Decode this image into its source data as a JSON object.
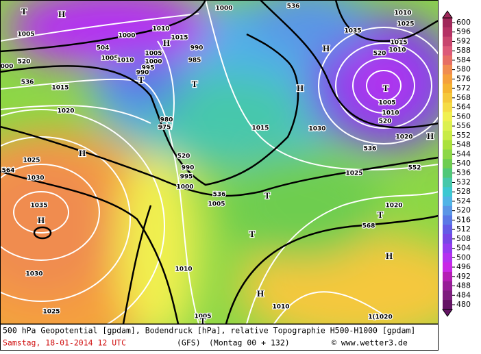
{
  "caption": {
    "line1": "500 hPa Geopotential [gpdam], Bodendruck [hPa], relative Topographie H500-H1000 [gpdam]",
    "date": "Samstag, 18-01-2014  12 UTC",
    "model": "(GFS)",
    "forecast": "(Montag 00 + 132)",
    "credit": "© www.wetter3.de"
  },
  "legend": {
    "levels": [
      600,
      596,
      592,
      588,
      584,
      580,
      576,
      572,
      568,
      564,
      560,
      556,
      552,
      548,
      544,
      540,
      536,
      532,
      528,
      524,
      520,
      516,
      512,
      508,
      504,
      500,
      496,
      492,
      488,
      484,
      480
    ],
    "colors": [
      "#a0285a",
      "#b43264",
      "#c8466e",
      "#dc5a78",
      "#e66e64",
      "#f08c50",
      "#f5a03c",
      "#f5b432",
      "#f5c83c",
      "#f5dc46",
      "#f0f050",
      "#dcf050",
      "#c8eb46",
      "#aae13c",
      "#8cd746",
      "#6ecd50",
      "#50c878",
      "#46c8aa",
      "#3cc8d2",
      "#50b4e6",
      "#5a96e6",
      "#5a78e6",
      "#645ae6",
      "#7846e6",
      "#963cf0",
      "#b432f0",
      "#c828e6",
      "#b41eb4",
      "#961e96",
      "#7d1e7d",
      "#641464"
    ]
  },
  "map": {
    "labels": [
      "T",
      "H",
      "1005",
      "504",
      "1000",
      "1010",
      "1015",
      "H",
      "1005",
      "1010",
      "1005",
      "1000",
      "995",
      "990",
      "990",
      "985",
      "T",
      "T",
      "520",
      "000",
      "536",
      "1015",
      "1020",
      "1000",
      "536",
      "1035",
      "1010",
      "1025",
      "H",
      "520",
      "1015",
      "1010",
      "T",
      "1005",
      "1010",
      "520",
      "H",
      "1015",
      "1030",
      "1020",
      "H",
      "536",
      "552",
      "980",
      "975",
      "520",
      "990",
      "995",
      "1000",
      "536",
      "1005",
      "T",
      "1025",
      "1020",
      "568",
      "T",
      "H",
      "T",
      "H",
      "1025",
      "564",
      "1030",
      "1035",
      "H",
      "1030",
      "1025",
      "1010",
      "H",
      "1010",
      "1005",
      "T",
      "1(1020"
    ]
  }
}
